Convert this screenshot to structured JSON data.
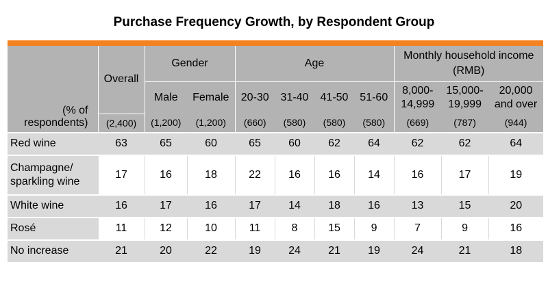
{
  "title": "Purchase Frequency Growth, by Respondent Group",
  "accent_color": "#f58220",
  "header": {
    "row_label": "(% of respondents)",
    "overall": "Overall",
    "gender": "Gender",
    "age": "Age",
    "income": "Monthly household income (RMB)",
    "columns": [
      "Male",
      "Female",
      "20-30",
      "31-40",
      "41-50",
      "51-60",
      "8,000-14,999",
      "15,000-19,999",
      "20,000 and over"
    ],
    "sample_sizes": [
      "(2,400)",
      "(1,200)",
      "(1,200)",
      "(660)",
      "(580)",
      "(580)",
      "(580)",
      "(669)",
      "(787)",
      "(944)"
    ]
  },
  "rows": [
    {
      "label": "Red wine",
      "values": [
        "63",
        "65",
        "60",
        "65",
        "60",
        "62",
        "64",
        "62",
        "62",
        "64"
      ]
    },
    {
      "label": "Champagne/ sparkling wine",
      "values": [
        "17",
        "16",
        "18",
        "22",
        "16",
        "16",
        "14",
        "16",
        "17",
        "19"
      ]
    },
    {
      "label": "White wine",
      "values": [
        "16",
        "17",
        "16",
        "17",
        "14",
        "18",
        "16",
        "13",
        "15",
        "20"
      ]
    },
    {
      "label": "Rosé",
      "values": [
        "11",
        "12",
        "10",
        "11",
        "8",
        "15",
        "9",
        "7",
        "9",
        "16"
      ]
    },
    {
      "label": "No increase",
      "values": [
        "21",
        "20",
        "22",
        "19",
        "24",
        "21",
        "19",
        "24",
        "21",
        "18"
      ]
    }
  ]
}
